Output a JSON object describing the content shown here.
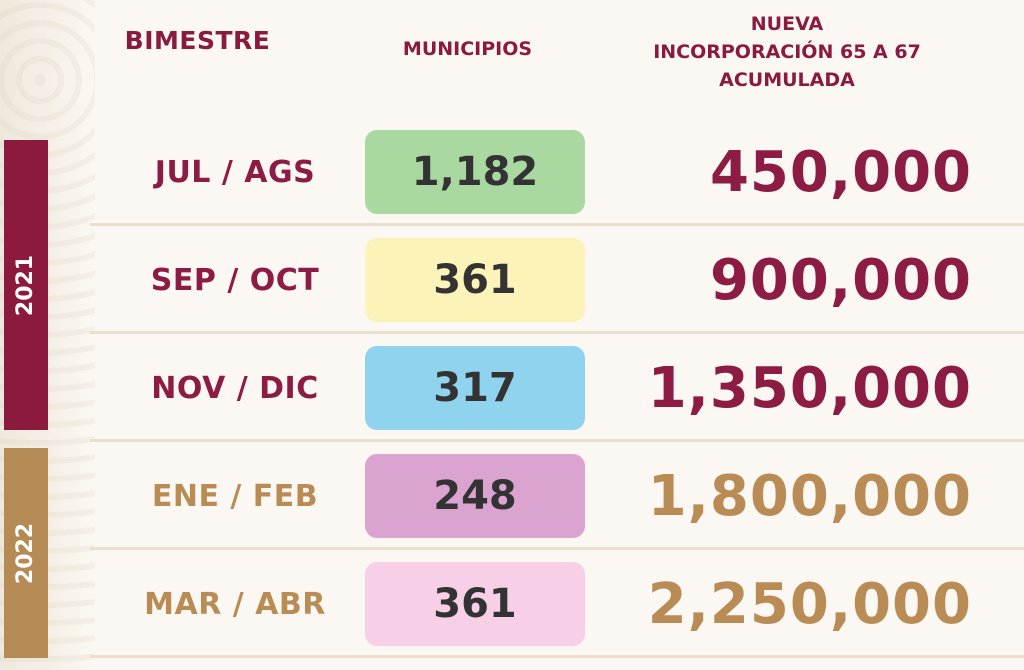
{
  "headers": {
    "bimestre": "BIMESTRE",
    "municipios": "MUNICIPIOS",
    "nueva": [
      "NUEVA",
      "INCORPORACIÓN 65 A 67",
      "ACUMULADA"
    ]
  },
  "years": [
    "2021",
    "2022"
  ],
  "rows": [
    {
      "bimestre": "JUL / AGS",
      "municipios": "1,182",
      "acumulada": "450,000"
    },
    {
      "bimestre": "SEP / OCT",
      "municipios": "361",
      "acumulada": "900,000"
    },
    {
      "bimestre": "NOV / DIC",
      "municipios": "317",
      "acumulada": "1,350,000"
    },
    {
      "bimestre": "ENE / FEB",
      "municipios": "248",
      "acumulada": "1,800,000"
    },
    {
      "bimestre": "MAR / ABR",
      "municipios": "361",
      "acumulada": "2,250,000"
    }
  ],
  "colors": {
    "maroon": "#8c1c44",
    "gold": "#b98c55",
    "year_2021_bar": "#8c1a3f",
    "year_2022_bar": "#b68a55",
    "box_green": "#a9d9a1",
    "box_yellow": "#fbf3b8",
    "box_blue": "#8fd3ef",
    "box_purple": "#dba4d0",
    "box_pink": "#f7cfe6"
  }
}
